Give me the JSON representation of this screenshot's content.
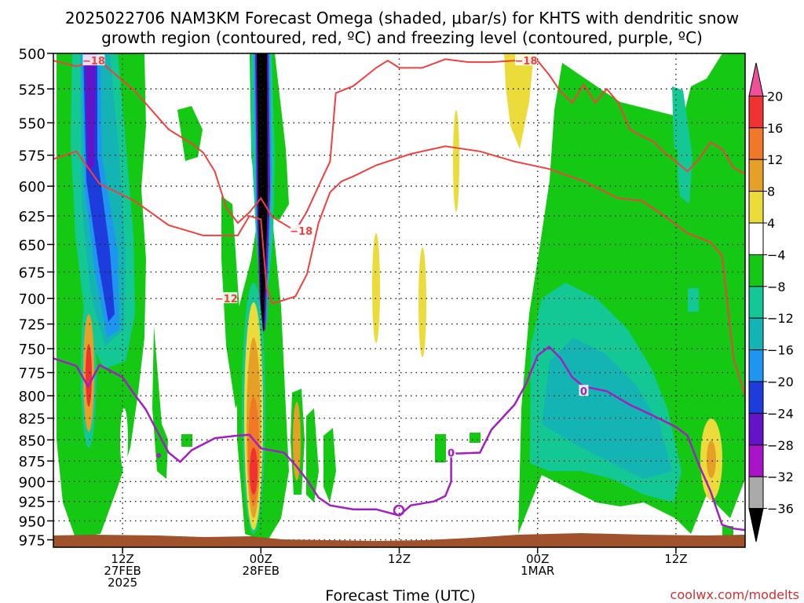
{
  "title": {
    "line1": "2025022706 NAM3KM Forecast Omega (shaded, μbar/s) for KHTS with dendritic snow",
    "line2": "growth region (contoured, red, ºC) and freezing level (contoured, purple, ºC)"
  },
  "xaxis": {
    "label": "Forecast Time (UTC)",
    "ticks": [
      {
        "t": 6,
        "l1": "12Z",
        "l2": "27FEB",
        "l3": "2025"
      },
      {
        "t": 18,
        "l1": "00Z",
        "l2": "28FEB",
        "l3": ""
      },
      {
        "t": 30,
        "l1": "12Z",
        "l2": "",
        "l3": ""
      },
      {
        "t": 42,
        "l1": "00Z",
        "l2": "1MAR",
        "l3": ""
      },
      {
        "t": 54,
        "l1": "12Z",
        "l2": "",
        "l3": ""
      }
    ]
  },
  "yaxis": {
    "ticks": [
      "500",
      "525",
      "550",
      "575",
      "600",
      "625",
      "650",
      "675",
      "700",
      "725",
      "750",
      "775",
      "800",
      "825",
      "850",
      "875",
      "900",
      "925",
      "950",
      "975"
    ]
  },
  "colorbar": {
    "labels": [
      "20",
      "16",
      "12",
      "8",
      "4",
      "−4",
      "−8",
      "−12",
      "−16",
      "−20",
      "−24",
      "−28",
      "−32",
      "−36"
    ],
    "colors": [
      "#f0509a",
      "#f03232",
      "#f07828",
      "#e6a028",
      "#ebdc3c",
      "#ffffff",
      "#14c814",
      "#14c896",
      "#14b4b4",
      "#1e96f0",
      "#1e3cdc",
      "#6414c8",
      "#aa14c8",
      "#aaaaaa",
      "#000000"
    ]
  },
  "credit": "coolwx.com/modelts",
  "colors": {
    "dgz": "#f04040",
    "freezing": "#a020c0",
    "terrain": "#a0522d",
    "grid": "#222222"
  },
  "chart_data": {
    "type": "heatmap",
    "title": "2025022706 NAM3KM Forecast Omega (shaded, μbar/s) for KHTS with dendritic snow growth region (contoured, red, ºC) and freezing level (contoured, purple, ºC)",
    "xlabel": "Forecast Time (UTC)",
    "ylabel": "",
    "x_range_hours_from_06Z_27FEB": [
      0,
      60
    ],
    "y_range_mb": [
      500,
      985
    ],
    "y_scale": "log-pressure (inverted)",
    "grid": true,
    "omega_shaded_levels": [
      -36,
      -32,
      -28,
      -24,
      -20,
      -16,
      -12,
      -8,
      -4,
      4,
      8,
      12,
      16,
      20
    ],
    "contour_labels": [
      "-18",
      "-18",
      "-18",
      "-12",
      "0",
      "0"
    ],
    "dgz_minus12C_mb": [
      [
        0,
        578
      ],
      [
        2,
        572
      ],
      [
        4,
        598
      ],
      [
        7,
        612
      ],
      [
        10,
        633
      ],
      [
        13,
        642
      ],
      [
        16,
        642
      ],
      [
        17,
        625
      ],
      [
        18,
        628
      ],
      [
        18.5,
        690
      ],
      [
        19,
        705
      ],
      [
        21,
        698
      ],
      [
        22,
        677
      ],
      [
        23,
        631
      ],
      [
        24,
        605
      ],
      [
        25,
        596
      ],
      [
        26,
        592
      ],
      [
        28,
        583
      ],
      [
        31,
        574
      ],
      [
        34,
        568
      ],
      [
        37,
        572
      ],
      [
        40,
        580
      ],
      [
        43,
        586
      ],
      [
        46,
        596
      ],
      [
        49,
        610
      ],
      [
        51,
        612
      ],
      [
        53,
        625
      ],
      [
        55,
        640
      ],
      [
        57,
        648
      ],
      [
        58,
        660
      ],
      [
        59,
        760
      ],
      [
        60,
        800
      ]
    ],
    "dgz_minus18C_mb": [
      [
        0,
        505
      ],
      [
        2,
        509
      ],
      [
        4,
        505
      ],
      [
        5,
        512
      ],
      [
        7,
        526
      ],
      [
        10,
        555
      ],
      [
        12,
        566
      ],
      [
        13,
        573
      ],
      [
        14,
        588
      ],
      [
        15,
        618
      ],
      [
        16,
        631
      ],
      [
        17,
        622
      ],
      [
        18,
        610
      ],
      [
        19,
        626
      ],
      [
        20,
        632
      ],
      [
        21,
        638
      ],
      [
        22,
        621
      ],
      [
        23,
        600
      ],
      [
        24,
        580
      ],
      [
        24.5,
        528
      ],
      [
        26,
        523
      ],
      [
        28,
        510
      ],
      [
        29,
        505
      ],
      [
        30,
        510
      ],
      [
        32,
        510
      ],
      [
        34,
        504
      ],
      [
        36,
        506
      ],
      [
        38,
        506
      ],
      [
        40,
        505
      ],
      [
        42,
        505
      ],
      [
        43,
        515
      ],
      [
        44,
        527
      ],
      [
        45,
        535
      ],
      [
        46,
        522
      ],
      [
        47,
        535
      ],
      [
        48,
        525
      ],
      [
        49,
        535
      ],
      [
        50,
        555
      ],
      [
        51,
        560
      ],
      [
        52,
        564
      ],
      [
        53,
        573
      ],
      [
        54,
        580
      ],
      [
        55,
        588
      ],
      [
        56,
        578
      ],
      [
        57,
        565
      ],
      [
        58,
        570
      ],
      [
        59,
        585
      ],
      [
        60,
        590
      ]
    ],
    "freezing_level_0C_mb": [
      [
        0,
        760
      ],
      [
        2,
        768
      ],
      [
        3,
        790
      ],
      [
        4,
        767
      ],
      [
        6,
        780
      ],
      [
        7,
        798
      ],
      [
        8,
        815
      ],
      [
        9,
        840
      ],
      [
        10,
        865
      ],
      [
        11,
        876
      ],
      [
        12,
        862
      ],
      [
        14,
        848
      ],
      [
        16,
        845
      ],
      [
        17,
        844
      ],
      [
        18,
        860
      ],
      [
        20,
        865
      ],
      [
        21,
        880
      ],
      [
        22,
        898
      ],
      [
        23,
        920
      ],
      [
        24,
        930
      ],
      [
        26,
        935
      ],
      [
        28,
        935
      ],
      [
        30,
        943
      ],
      [
        31,
        930
      ],
      [
        33,
        925
      ],
      [
        34,
        918
      ],
      [
        34.5,
        900
      ],
      [
        34.5,
        863
      ],
      [
        35,
        866
      ],
      [
        37,
        865
      ],
      [
        38,
        838
      ],
      [
        40,
        810
      ],
      [
        41,
        787
      ],
      [
        42,
        757
      ],
      [
        43,
        748
      ],
      [
        44,
        760
      ],
      [
        45,
        780
      ],
      [
        46,
        790
      ],
      [
        48,
        795
      ],
      [
        50,
        810
      ],
      [
        52,
        822
      ],
      [
        54,
        835
      ],
      [
        55,
        845
      ],
      [
        56,
        880
      ],
      [
        57,
        912
      ],
      [
        58,
        955
      ],
      [
        59,
        960
      ],
      [
        60,
        962
      ]
    ]
  }
}
